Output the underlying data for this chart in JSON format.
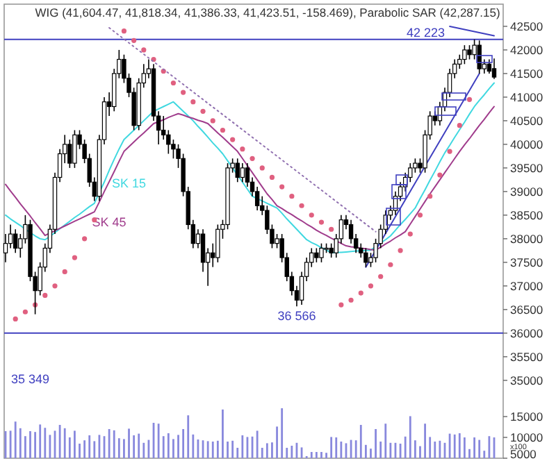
{
  "chart_data": {
    "type": "candlestick",
    "title": "WIG (41,604.47, 41,818.34, 41,386.33, 41,423.51, -158.469), Parabolic SAR (42,287.15)",
    "categories": [
      null,
      null,
      null,
      null,
      null,
      null,
      null,
      null,
      null,
      null,
      null,
      null,
      null,
      null,
      null,
      null,
      null,
      null,
      null,
      null,
      null,
      null,
      null,
      null,
      null,
      null,
      null,
      null,
      null,
      null,
      null,
      null,
      null,
      null,
      null,
      null,
      null,
      null,
      null,
      null,
      null,
      null,
      null,
      null,
      null,
      null,
      null,
      null,
      null,
      null,
      null,
      null,
      null,
      null,
      null,
      null,
      null,
      null,
      null,
      null,
      null,
      null,
      null,
      null,
      null,
      null,
      null,
      null,
      null,
      null,
      null,
      null,
      null,
      null,
      null,
      null,
      null,
      null,
      null,
      null,
      null,
      null,
      null,
      null,
      null,
      null,
      null,
      null,
      null,
      null,
      null,
      null,
      null,
      null,
      null,
      null,
      null,
      null,
      null,
      null
    ],
    "color": "#000000",
    "ohlc": [
      [
        37700,
        38100,
        37500,
        37900
      ],
      [
        37900,
        38300,
        37800,
        38100
      ],
      [
        38100,
        38200,
        37700,
        37800
      ],
      [
        37800,
        38100,
        37600,
        38000
      ],
      [
        38000,
        38500,
        37900,
        38300
      ],
      [
        38300,
        38400,
        37100,
        37200
      ],
      [
        37200,
        37300,
        36400,
        36900
      ],
      [
        36900,
        37500,
        36800,
        37400
      ],
      [
        37400,
        37900,
        37300,
        37800
      ],
      [
        37800,
        38300,
        37700,
        38200
      ],
      [
        38200,
        39400,
        38100,
        39300
      ],
      [
        39300,
        39900,
        39200,
        39800
      ],
      [
        39800,
        40200,
        39600,
        40000
      ],
      [
        40000,
        40100,
        39500,
        39600
      ],
      [
        39600,
        40300,
        39500,
        40200
      ],
      [
        40200,
        40300,
        39900,
        40000
      ],
      [
        40000,
        40100,
        39600,
        39700
      ],
      [
        39700,
        39800,
        39100,
        39200
      ],
      [
        39200,
        39300,
        38800,
        38900
      ],
      [
        38900,
        40200,
        38800,
        40100
      ],
      [
        40100,
        41000,
        40000,
        40900
      ],
      [
        40900,
        41100,
        40600,
        40800
      ],
      [
        40800,
        41600,
        40700,
        41500
      ],
      [
        41500,
        42000,
        41400,
        41800
      ],
      [
        41800,
        41900,
        41300,
        41400
      ],
      [
        41400,
        41500,
        41000,
        41100
      ],
      [
        41100,
        41200,
        40300,
        40400
      ],
      [
        40400,
        41400,
        40300,
        41300
      ],
      [
        41300,
        41700,
        41200,
        41500
      ],
      [
        41500,
        41800,
        41400,
        41600
      ],
      [
        41600,
        41700,
        40500,
        40600
      ],
      [
        40600,
        40700,
        40000,
        40300
      ],
      [
        40300,
        40600,
        40100,
        40200
      ],
      [
        40200,
        40300,
        39800,
        40000
      ],
      [
        40000,
        40100,
        39700,
        39900
      ],
      [
        39900,
        40000,
        39500,
        39700
      ],
      [
        39700,
        39800,
        38900,
        39000
      ],
      [
        39000,
        39100,
        38200,
        38300
      ],
      [
        38300,
        38400,
        37800,
        37900
      ],
      [
        37900,
        38200,
        37800,
        38100
      ],
      [
        38100,
        38200,
        37300,
        37500
      ],
      [
        37500,
        37800,
        37000,
        37700
      ],
      [
        37700,
        37900,
        37400,
        37600
      ],
      [
        37600,
        38300,
        37500,
        38200
      ],
      [
        38200,
        38400,
        38000,
        38300
      ],
      [
        38300,
        39600,
        38200,
        39500
      ],
      [
        39500,
        39700,
        39400,
        39600
      ],
      [
        39600,
        39700,
        39200,
        39300
      ],
      [
        39300,
        39600,
        39200,
        39500
      ],
      [
        39500,
        39600,
        39100,
        39200
      ],
      [
        39200,
        39300,
        38900,
        39000
      ],
      [
        39000,
        39100,
        38600,
        38700
      ],
      [
        38700,
        38900,
        38500,
        38600
      ],
      [
        38600,
        38700,
        38100,
        38200
      ],
      [
        38200,
        38300,
        37800,
        37900
      ],
      [
        37900,
        38100,
        37800,
        38000
      ],
      [
        38000,
        38100,
        37500,
        37600
      ],
      [
        37600,
        37700,
        37100,
        37200
      ],
      [
        37200,
        37300,
        36800,
        36900
      ],
      [
        36900,
        37000,
        36566,
        36700
      ],
      [
        36700,
        37300,
        36600,
        37200
      ],
      [
        37200,
        37600,
        37100,
        37500
      ],
      [
        37500,
        37800,
        37400,
        37700
      ],
      [
        37700,
        37800,
        37500,
        37600
      ],
      [
        37600,
        37900,
        37500,
        37800
      ],
      [
        37800,
        37900,
        37700,
        37800
      ],
      [
        37800,
        37900,
        37600,
        37700
      ],
      [
        37700,
        38100,
        37600,
        38000
      ],
      [
        38000,
        38500,
        37900,
        38400
      ],
      [
        38400,
        38500,
        38200,
        38300
      ],
      [
        38300,
        38400,
        37900,
        38000
      ],
      [
        38000,
        38100,
        37700,
        37800
      ],
      [
        37800,
        37900,
        37600,
        37700
      ],
      [
        37700,
        37800,
        37400,
        37500
      ],
      [
        37500,
        37700,
        37400,
        37600
      ],
      [
        37600,
        38000,
        37500,
        37900
      ],
      [
        37900,
        38300,
        37800,
        38200
      ],
      [
        38200,
        38600,
        38100,
        38500
      ],
      [
        38500,
        38700,
        38400,
        38600
      ],
      [
        38600,
        39000,
        38500,
        38900
      ],
      [
        38900,
        39200,
        38800,
        39100
      ],
      [
        39100,
        39400,
        39000,
        39300
      ],
      [
        39300,
        39600,
        39200,
        39500
      ],
      [
        39500,
        39700,
        39400,
        39600
      ],
      [
        39600,
        39700,
        39400,
        39500
      ],
      [
        39500,
        40300,
        39400,
        40200
      ],
      [
        40200,
        40700,
        40100,
        40600
      ],
      [
        40600,
        40700,
        40400,
        40500
      ],
      [
        40500,
        40900,
        40400,
        40800
      ],
      [
        40800,
        41200,
        40700,
        41100
      ],
      [
        41100,
        41600,
        41000,
        41500
      ],
      [
        41500,
        41800,
        41400,
        41700
      ],
      [
        41700,
        41900,
        41600,
        41800
      ],
      [
        41800,
        42100,
        41700,
        42000
      ],
      [
        42000,
        42100,
        41800,
        41900
      ],
      [
        41900,
        42223,
        41800,
        42100
      ],
      [
        42100,
        42200,
        41500,
        41600
      ],
      [
        41600,
        41800,
        41500,
        41700
      ],
      [
        41700,
        41800,
        41500,
        41550
      ],
      [
        41604,
        41818,
        41386,
        41424
      ]
    ],
    "series": [
      {
        "type": "bar",
        "axis": "y2",
        "color": "#8888dd",
        "values": [
          11500,
          11600,
          13800,
          12200,
          10300,
          11500,
          11300,
          13100,
          12300,
          10600,
          11600,
          13000,
          12200,
          10000,
          11600,
          8500,
          9300,
          10500,
          9100,
          10600,
          10300,
          12000,
          11700,
          9800,
          9600,
          12100,
          10500,
          10900,
          8700,
          9400,
          13500,
          13300,
          10300,
          11000,
          9600,
          10600,
          12000,
          15300,
          10700,
          9500,
          9300,
          9100,
          9000,
          9200,
          16700,
          9000,
          9200,
          7500,
          10500,
          10100,
          10200,
          11600,
          7500,
          8600,
          8800,
          12600,
          17000,
          7500,
          8000,
          8700,
          7600,
          5500,
          6500,
          6500,
          6500,
          6300,
          10100,
          10000,
          9000,
          8600,
          9400,
          9300,
          13000,
          8200,
          7300,
          12000,
          9000,
          13300,
          8700,
          8700,
          8500,
          10200,
          15100,
          9300,
          7900,
          13300,
          10100,
          9000,
          9200,
          8700,
          10900,
          10700,
          11000,
          10000,
          7200,
          10000,
          9400,
          6800,
          10300,
          10000
        ]
      },
      {
        "type": "line",
        "name": "SK 15",
        "color": "#40d8e0",
        "values": [
          38500,
          38420,
          38350,
          38280,
          38200,
          38130,
          38060,
          38000,
          37980,
          38050,
          38130,
          38210,
          38290,
          38370,
          38450,
          38520,
          38600,
          38680,
          38750,
          38980,
          39200,
          39450,
          39680,
          39900,
          40100,
          40200,
          40300,
          40400,
          40500,
          40600,
          40700,
          40750,
          40800,
          40850,
          40900,
          40800,
          40700,
          40600,
          40500,
          40380,
          40270,
          40150,
          40030,
          39920,
          39800,
          39650,
          39500,
          39350,
          39200,
          39050,
          38900,
          38850,
          38800,
          38750,
          38700,
          38650,
          38540,
          38420,
          38310,
          38200,
          38090,
          37980,
          37920,
          37870,
          37810,
          37760,
          37700,
          37710,
          37710,
          37720,
          37730,
          37740,
          37740,
          37750,
          37760,
          37830,
          37910,
          37980,
          38060,
          38180,
          38300,
          38410,
          38530,
          38650,
          38850,
          39040,
          39240,
          39430,
          39630,
          39820,
          39980,
          40150,
          40310,
          40470,
          40640,
          40800,
          40930,
          41050,
          41180,
          41300
        ]
      },
      {
        "type": "line",
        "name": "SK 45",
        "color": "#a03c8c",
        "values": [
          39150,
          39010,
          38880,
          38740,
          38610,
          38480,
          38340,
          38210,
          38070,
          38120,
          38170,
          38220,
          38270,
          38320,
          38370,
          38420,
          38470,
          38520,
          38570,
          38780,
          39000,
          39210,
          39420,
          39640,
          39850,
          39950,
          40050,
          40150,
          40240,
          40340,
          40440,
          40480,
          40520,
          40570,
          40610,
          40650,
          40620,
          40580,
          40550,
          40510,
          40480,
          40440,
          40340,
          40240,
          40150,
          40050,
          39950,
          39850,
          39700,
          39550,
          39400,
          39250,
          39100,
          38950,
          38830,
          38700,
          38640,
          38570,
          38510,
          38440,
          38380,
          38310,
          38250,
          38180,
          38120,
          38070,
          38010,
          37960,
          37900,
          37850,
          37830,
          37820,
          37800,
          37790,
          37770,
          37760,
          37820,
          37890,
          37950,
          38020,
          38080,
          38150,
          38310,
          38470,
          38630,
          38790,
          38950,
          39100,
          39250,
          39400,
          39550,
          39700,
          39850,
          39990,
          40120,
          40260,
          40400,
          40530,
          40670,
          40800
        ]
      },
      {
        "type": "scatter",
        "color": "#e06080",
        "marker": "circle",
        "values": [
          null,
          null,
          36300,
          null,
          36450,
          null,
          36600,
          null,
          36800,
          null,
          37000,
          null,
          37300,
          null,
          37600,
          null,
          38000,
          null,
          38400,
          null,
          null,
          null,
          null,
          null,
          42400,
          null,
          42200,
          null,
          42000,
          null,
          41800,
          null,
          41550,
          null,
          41300,
          null,
          41100,
          null,
          40900,
          null,
          40700,
          null,
          40500,
          null,
          40300,
          null,
          40100,
          null,
          39900,
          null,
          39700,
          null,
          39500,
          null,
          39300,
          null,
          39100,
          null,
          38900,
          null,
          38700,
          null,
          38500,
          null,
          38350,
          null,
          38200,
          null,
          36600,
          null,
          36700,
          null,
          36850,
          null,
          37000,
          null,
          37200,
          null,
          37450,
          null,
          37750,
          null,
          38100,
          null,
          38500,
          null,
          38900,
          null,
          39350,
          null,
          39850,
          null,
          40400,
          null,
          40950,
          null,
          null,
          null,
          null,
          null
        ]
      },
      {
        "type": "line",
        "color": "#4040c0",
        "values": [
          null,
          null,
          null,
          null,
          null,
          null,
          null,
          null,
          null,
          null,
          null,
          null,
          null,
          null,
          null,
          null,
          null,
          null,
          null,
          null,
          null,
          null,
          null,
          null,
          null,
          null,
          null,
          null,
          null,
          null,
          null,
          null,
          null,
          null,
          null,
          null,
          null,
          null,
          null,
          null,
          null,
          null,
          null,
          null,
          null,
          null,
          null,
          null,
          null,
          null,
          null,
          null,
          null,
          null,
          null,
          null,
          null,
          null,
          null,
          null,
          null,
          null,
          null,
          null,
          null,
          null,
          null,
          null,
          null,
          null,
          null,
          null,
          null,
          37400,
          null,
          null,
          null,
          null,
          null,
          null,
          null,
          null,
          null,
          null,
          null,
          null,
          null,
          null,
          null,
          null,
          null,
          null,
          null,
          null,
          null,
          null,
          41500,
          null,
          null,
          null
        ]
      },
      {
        "type": "line",
        "color": "#4040c0",
        "values": [
          null,
          null,
          null,
          null,
          null,
          null,
          null,
          null,
          null,
          null,
          null,
          null,
          null,
          null,
          null,
          null,
          null,
          null,
          null,
          null,
          null,
          null,
          null,
          null,
          null,
          null,
          null,
          null,
          null,
          null,
          null,
          null,
          null,
          null,
          null,
          null,
          null,
          null,
          null,
          null,
          null,
          null,
          null,
          null,
          null,
          null,
          null,
          null,
          null,
          null,
          null,
          null,
          null,
          null,
          null,
          null,
          null,
          null,
          null,
          null,
          null,
          null,
          null,
          null,
          null,
          null,
          null,
          null,
          null,
          null,
          null,
          null,
          null,
          null,
          null,
          null,
          null,
          null,
          null,
          null,
          null,
          null,
          null,
          null,
          null,
          null,
          null,
          null,
          null,
          null,
          42500,
          null,
          null,
          null,
          null,
          null,
          null,
          null,
          null,
          42300
        ]
      },
      {
        "type": "line",
        "color": "#9070b0",
        "line_style": "dotted",
        "values": [
          null,
          null,
          null,
          null,
          null,
          null,
          null,
          null,
          null,
          null,
          null,
          null,
          null,
          null,
          null,
          null,
          null,
          null,
          null,
          null,
          null,
          42470,
          null,
          null,
          null,
          null,
          null,
          null,
          null,
          null,
          null,
          null,
          null,
          null,
          null,
          null,
          null,
          null,
          null,
          null,
          null,
          null,
          null,
          null,
          null,
          null,
          null,
          null,
          null,
          null,
          null,
          null,
          null,
          null,
          null,
          null,
          null,
          null,
          null,
          null,
          null,
          null,
          null,
          null,
          null,
          null,
          null,
          null,
          null,
          null,
          null,
          null,
          null,
          null,
          null,
          38150,
          null,
          null,
          null,
          null,
          null,
          null,
          null,
          null,
          null,
          null,
          null,
          null,
          null,
          null,
          null,
          null,
          null,
          null,
          null,
          null,
          null,
          null,
          null,
          null
        ]
      }
    ],
    "ylim": [
      33350,
      42940
    ],
    "yticks": [
      35000,
      35500,
      36000,
      36500,
      37000,
      37500,
      38000,
      38500,
      39000,
      39500,
      40000,
      40500,
      41000,
      41500,
      42000,
      42500
    ],
    "y2lim": [
      5000,
      113700
    ],
    "y2ticks": [
      5000,
      10000,
      15000
    ],
    "ref_lines": [
      {
        "axis": "y",
        "value": 42223,
        "label": "42 223",
        "color": "#4040c0"
      },
      {
        "axis": "y",
        "value": 36000,
        "color": "#4040c0"
      }
    ],
    "annotations": [
      {
        "text": "36 566",
        "y": 36566
      },
      "35 349",
      "x100"
    ],
    "tick_labels": "y"
  }
}
